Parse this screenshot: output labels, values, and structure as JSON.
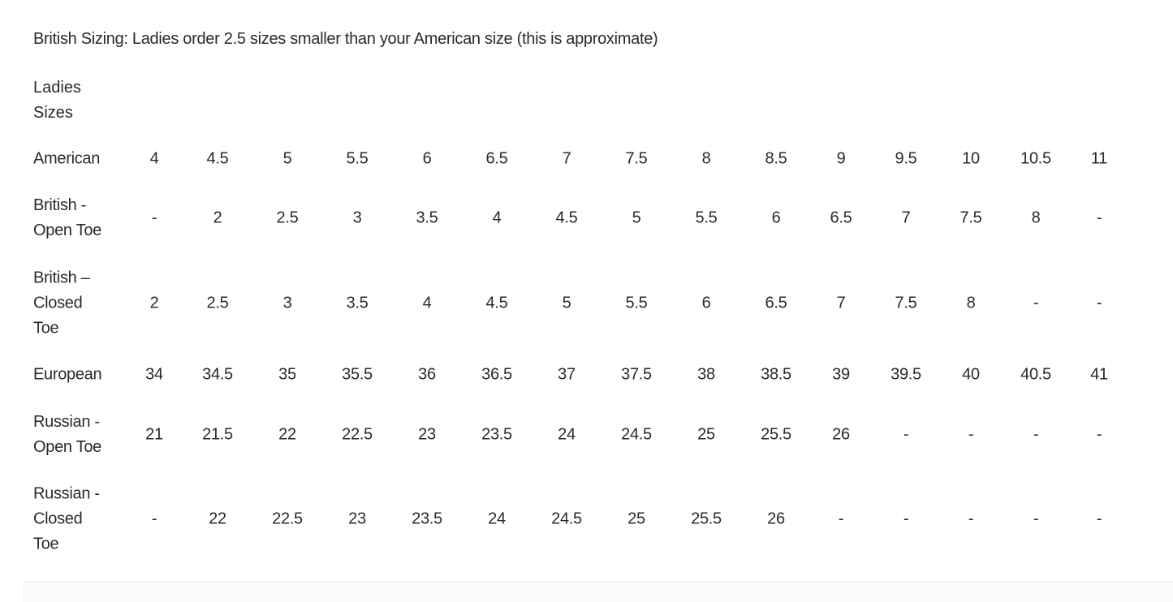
{
  "intro": "British Sizing: Ladies order 2.5 sizes smaller than your American size (this is approximate)",
  "table": {
    "header": "Ladies\nSizes",
    "rows": [
      {
        "label": "American",
        "values": [
          "4",
          "4.5",
          "5",
          "5.5",
          "6",
          "6.5",
          "7",
          "7.5",
          "8",
          "8.5",
          "9",
          "9.5",
          "10",
          "10.5",
          "11"
        ]
      },
      {
        "label": "British -\nOpen Toe",
        "values": [
          "-",
          "2",
          "2.5",
          "3",
          "3.5",
          "4",
          "4.5",
          "5",
          "5.5",
          "6",
          "6.5",
          "7",
          "7.5",
          "8",
          "-"
        ]
      },
      {
        "label": "British –\nClosed\nToe",
        "values": [
          "2",
          "2.5",
          "3",
          "3.5",
          "4",
          "4.5",
          "5",
          "5.5",
          "6",
          "6.5",
          "7",
          "7.5",
          "8",
          "-",
          "-"
        ]
      },
      {
        "label": "European",
        "values": [
          "34",
          "34.5",
          "35",
          "35.5",
          "36",
          "36.5",
          "37",
          "37.5",
          "38",
          "38.5",
          "39",
          "39.5",
          "40",
          "40.5",
          "41"
        ]
      },
      {
        "label": "Russian -\nOpen Toe",
        "values": [
          "21",
          "21.5",
          "22",
          "22.5",
          "23",
          "23.5",
          "24",
          "24.5",
          "25",
          "25.5",
          "26",
          "-",
          "-",
          "-",
          "-"
        ]
      },
      {
        "label": "Russian -\nClosed\nToe",
        "values": [
          "-",
          "22",
          "22.5",
          "23",
          "23.5",
          "24",
          "24.5",
          "25",
          "25.5",
          "26",
          "-",
          "-",
          "-",
          "-",
          "-"
        ]
      }
    ]
  }
}
